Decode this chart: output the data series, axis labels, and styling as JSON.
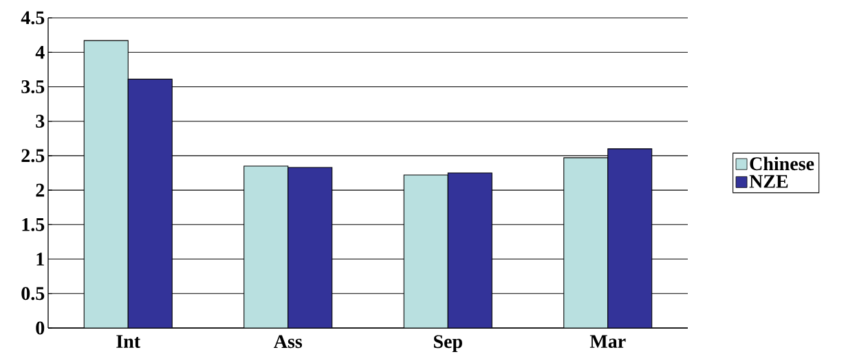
{
  "chart_data": {
    "type": "bar",
    "categories": [
      "Int",
      "Ass",
      "Sep",
      "Mar"
    ],
    "series": [
      {
        "name": "Chinese",
        "color": "#b9e0e0",
        "values": [
          4.17,
          2.35,
          2.22,
          2.47
        ]
      },
      {
        "name": "NZE",
        "color": "#333399",
        "values": [
          3.61,
          2.33,
          2.25,
          2.6
        ]
      }
    ],
    "ylim": [
      0,
      4.5
    ],
    "yticks": [
      0,
      0.5,
      1,
      1.5,
      2,
      2.5,
      3,
      3.5,
      4,
      4.5
    ],
    "grid": "y",
    "legend": "right"
  }
}
